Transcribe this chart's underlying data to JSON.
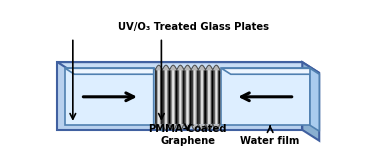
{
  "bg_color": "#ffffff",
  "tray_fill": "#b8d0ee",
  "tray_fill_top": "#c8ddf5",
  "tray_fill_right": "#8aafd0",
  "tray_edge": "#4060a0",
  "glass_fill": "#ddeeff",
  "glass_fill_top": "#eef6ff",
  "glass_fill_right": "#aaccee",
  "glass_edge": "#5080b0",
  "wave_dark": "#909090",
  "wave_light": "#d8d8d8",
  "arrow_color": "#000000",
  "label_graphene": "PMMA-Coated\nGraphene",
  "label_water": "Water film",
  "label_uv": "UV/O₃ Treated Glass Plates",
  "fig_width": 3.78,
  "fig_height": 1.65,
  "dpi": 100
}
